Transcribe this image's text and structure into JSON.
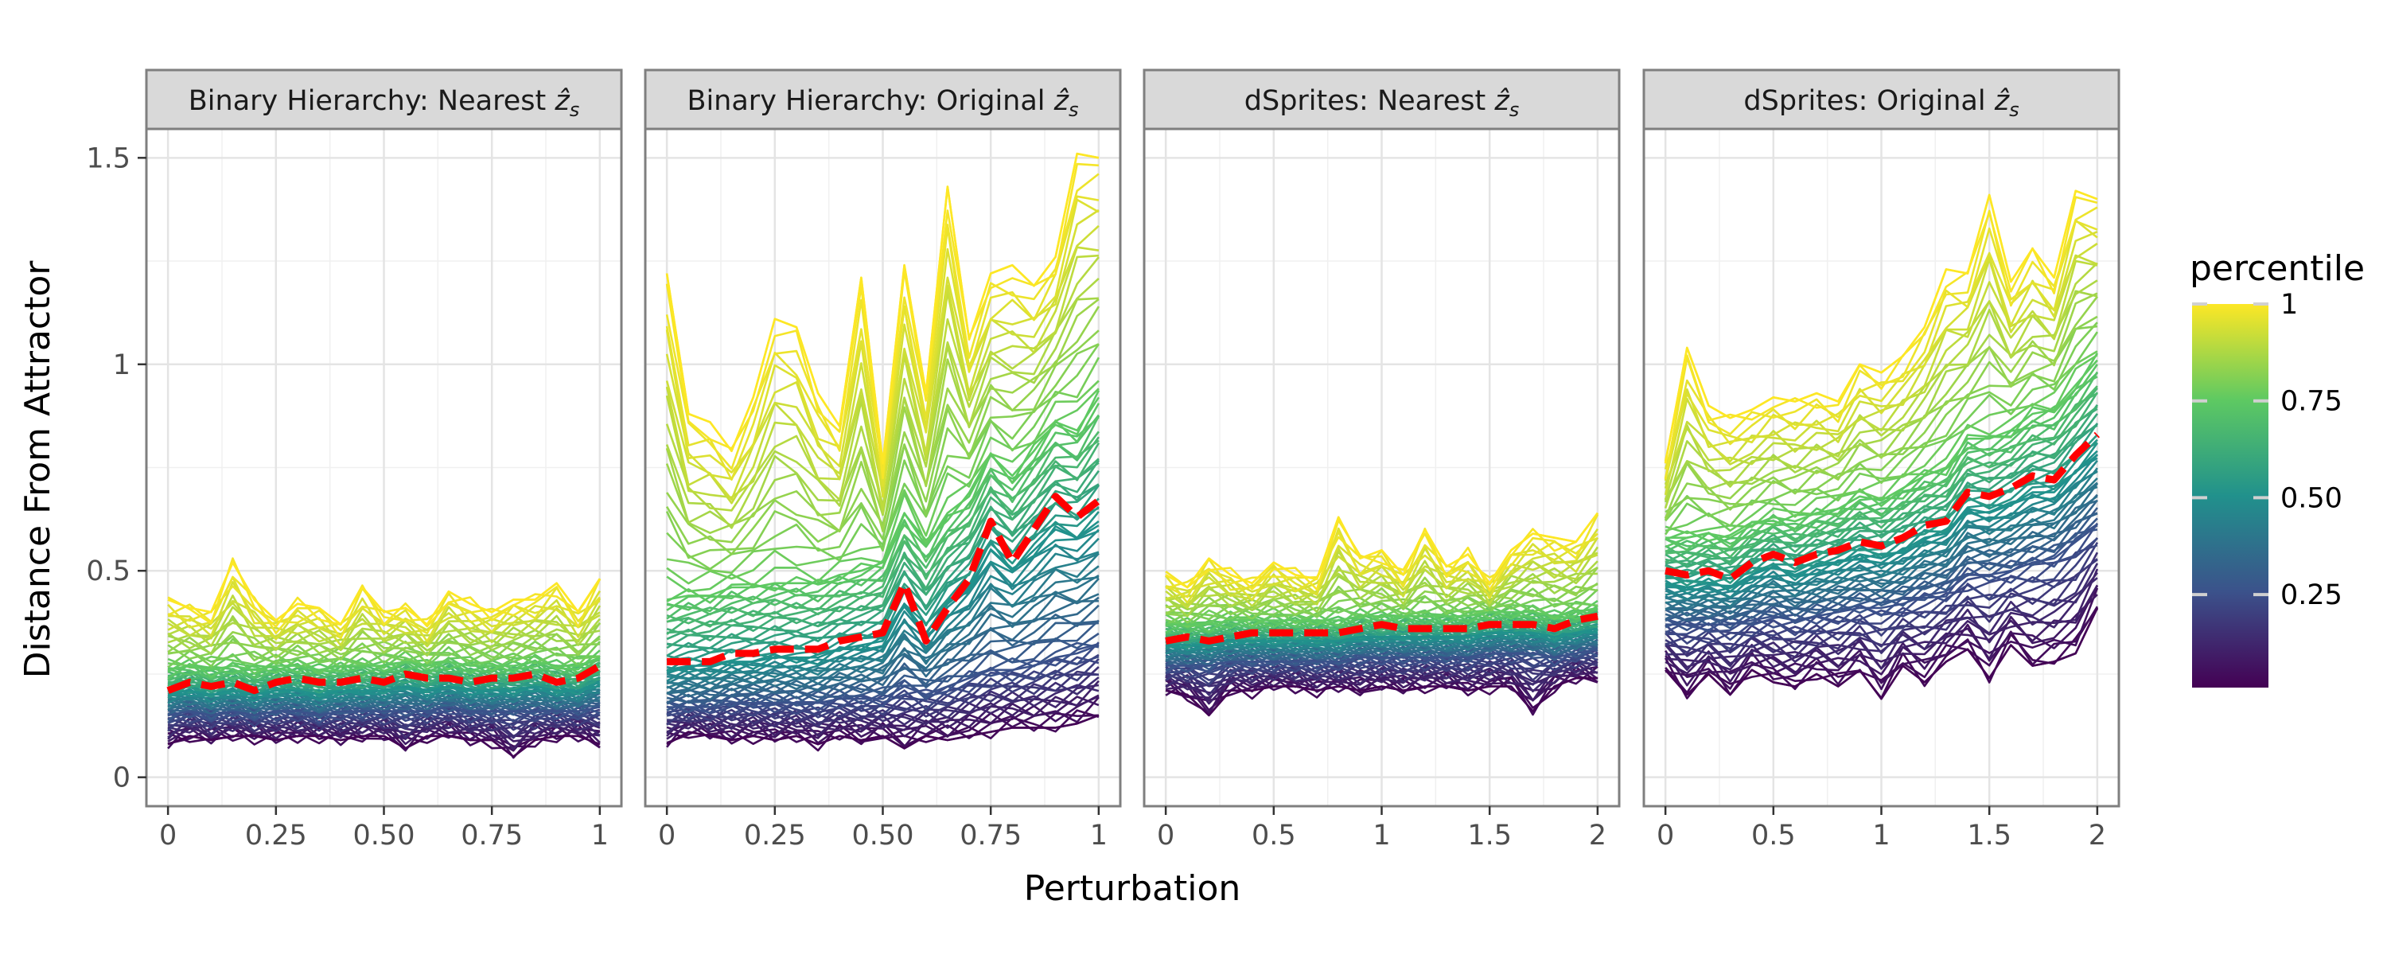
{
  "chart_data": {
    "type": "line",
    "ylabel": "Distance From Attractor",
    "xlabel": "Perturbation",
    "ylim": [
      -0.07,
      1.57
    ],
    "y_ticks": [
      {
        "value": 0,
        "label": "0"
      },
      {
        "value": 0.5,
        "label": "0.5"
      },
      {
        "value": 1,
        "label": "1"
      },
      {
        "value": 1.5,
        "label": "1.5"
      }
    ],
    "legend": {
      "title": "percentile",
      "placement": "right",
      "colors": [
        "#440154",
        "#3b528b",
        "#21918c",
        "#5ec962",
        "#fde725"
      ],
      "breaks": [
        {
          "value": 1,
          "label": "1"
        },
        {
          "value": 0.75,
          "label": "0.75"
        },
        {
          "value": 0.5,
          "label": "0.50"
        },
        {
          "value": 0.25,
          "label": "0.25"
        }
      ],
      "range": [
        0.01,
        1
      ]
    },
    "mean_line": {
      "color": "#ff0000",
      "style": "dashed"
    },
    "grid": true,
    "facets": [
      {
        "strip": "Binary Hierarchy: Nearest",
        "xlim": [
          -0.05,
          1.05
        ],
        "x_ticks": [
          {
            "value": 0,
            "label": "0"
          },
          {
            "value": 0.25,
            "label": "0.25"
          },
          {
            "value": 0.5,
            "label": "0.50"
          },
          {
            "value": 0.75,
            "label": "0.75"
          },
          {
            "value": 1,
            "label": "1"
          }
        ],
        "x": [
          0,
          0.05,
          0.1,
          0.15,
          0.2,
          0.25,
          0.3,
          0.35,
          0.4,
          0.45,
          0.5,
          0.55,
          0.6,
          0.65,
          0.7,
          0.75,
          0.8,
          0.85,
          0.9,
          0.95,
          1
        ],
        "mean": [
          0.21,
          0.23,
          0.22,
          0.23,
          0.21,
          0.23,
          0.24,
          0.23,
          0.23,
          0.24,
          0.23,
          0.25,
          0.24,
          0.24,
          0.23,
          0.24,
          0.24,
          0.25,
          0.23,
          0.24,
          0.27
        ],
        "bands": [
          {
            "p": 0.01,
            "values": [
              0.08,
              0.1,
              0.09,
              0.1,
              0.1,
              0.09,
              0.1,
              0.1,
              0.09,
              0.1,
              0.1,
              0.07,
              0.1,
              0.1,
              0.09,
              0.09,
              0.05,
              0.09,
              0.1,
              0.1,
              0.08
            ]
          },
          {
            "p": 0.25,
            "values": [
              0.15,
              0.16,
              0.15,
              0.16,
              0.15,
              0.16,
              0.16,
              0.15,
              0.16,
              0.16,
              0.16,
              0.16,
              0.16,
              0.17,
              0.16,
              0.16,
              0.16,
              0.16,
              0.16,
              0.16,
              0.17
            ]
          },
          {
            "p": 0.5,
            "values": [
              0.2,
              0.21,
              0.2,
              0.21,
              0.2,
              0.21,
              0.21,
              0.2,
              0.21,
              0.21,
              0.21,
              0.22,
              0.21,
              0.22,
              0.21,
              0.21,
              0.21,
              0.22,
              0.21,
              0.21,
              0.23
            ]
          },
          {
            "p": 0.75,
            "values": [
              0.26,
              0.27,
              0.26,
              0.27,
              0.26,
              0.27,
              0.27,
              0.26,
              0.27,
              0.27,
              0.27,
              0.28,
              0.27,
              0.28,
              0.27,
              0.27,
              0.27,
              0.28,
              0.27,
              0.27,
              0.29
            ]
          },
          {
            "p": 1,
            "values": [
              0.43,
              0.41,
              0.4,
              0.52,
              0.43,
              0.38,
              0.42,
              0.41,
              0.37,
              0.46,
              0.4,
              0.41,
              0.37,
              0.45,
              0.42,
              0.4,
              0.43,
              0.43,
              0.47,
              0.4,
              0.48
            ]
          }
        ]
      },
      {
        "strip": "Binary Hierarchy: Original",
        "xlim": [
          -0.05,
          1.05
        ],
        "x_ticks": [
          {
            "value": 0,
            "label": "0"
          },
          {
            "value": 0.25,
            "label": "0.25"
          },
          {
            "value": 0.5,
            "label": "0.50"
          },
          {
            "value": 0.75,
            "label": "0.75"
          },
          {
            "value": 1,
            "label": "1"
          }
        ],
        "x": [
          0,
          0.05,
          0.1,
          0.15,
          0.2,
          0.25,
          0.3,
          0.35,
          0.4,
          0.45,
          0.5,
          0.55,
          0.6,
          0.65,
          0.7,
          0.75,
          0.8,
          0.85,
          0.9,
          0.95,
          1
        ],
        "mean": [
          0.28,
          0.28,
          0.28,
          0.3,
          0.3,
          0.31,
          0.31,
          0.31,
          0.33,
          0.34,
          0.35,
          0.47,
          0.33,
          0.41,
          0.48,
          0.62,
          0.52,
          0.6,
          0.68,
          0.63,
          0.67
        ],
        "bands": [
          {
            "p": 0.01,
            "values": [
              0.08,
              0.11,
              0.1,
              0.09,
              0.1,
              0.09,
              0.1,
              0.08,
              0.1,
              0.09,
              0.1,
              0.07,
              0.1,
              0.09,
              0.1,
              0.11,
              0.12,
              0.12,
              0.12,
              0.13,
              0.15
            ]
          },
          {
            "p": 0.25,
            "values": [
              0.17,
              0.17,
              0.17,
              0.18,
              0.18,
              0.18,
              0.18,
              0.18,
              0.19,
              0.19,
              0.19,
              0.22,
              0.2,
              0.22,
              0.24,
              0.26,
              0.26,
              0.27,
              0.29,
              0.3,
              0.32
            ]
          },
          {
            "p": 0.5,
            "values": [
              0.26,
              0.27,
              0.27,
              0.28,
              0.28,
              0.29,
              0.29,
              0.29,
              0.31,
              0.32,
              0.33,
              0.42,
              0.35,
              0.42,
              0.46,
              0.55,
              0.5,
              0.55,
              0.6,
              0.58,
              0.62
            ]
          },
          {
            "p": 0.75,
            "values": [
              0.43,
              0.44,
              0.44,
              0.46,
              0.46,
              0.47,
              0.47,
              0.47,
              0.49,
              0.5,
              0.52,
              0.64,
              0.56,
              0.64,
              0.68,
              0.78,
              0.73,
              0.79,
              0.86,
              0.84,
              0.92
            ]
          },
          {
            "p": 1,
            "values": [
              1.22,
              0.88,
              0.86,
              0.79,
              0.92,
              1.11,
              1.09,
              0.93,
              0.85,
              1.21,
              0.76,
              1.24,
              0.93,
              1.43,
              1.06,
              1.22,
              1.24,
              1.19,
              1.26,
              1.51,
              1.5
            ]
          }
        ]
      },
      {
        "strip": "dSprites: Nearest",
        "xlim": [
          -0.1,
          2.1
        ],
        "x_ticks": [
          {
            "value": 0,
            "label": "0"
          },
          {
            "value": 0.5,
            "label": "0.5"
          },
          {
            "value": 1,
            "label": "1"
          },
          {
            "value": 1.5,
            "label": "1.5"
          },
          {
            "value": 2,
            "label": "2"
          }
        ],
        "x": [
          0,
          0.1,
          0.2,
          0.3,
          0.4,
          0.5,
          0.6,
          0.7,
          0.8,
          0.9,
          1,
          1.1,
          1.2,
          1.3,
          1.4,
          1.5,
          1.6,
          1.7,
          1.8,
          1.9,
          2
        ],
        "mean": [
          0.33,
          0.34,
          0.33,
          0.34,
          0.35,
          0.35,
          0.35,
          0.35,
          0.35,
          0.36,
          0.37,
          0.36,
          0.36,
          0.36,
          0.36,
          0.37,
          0.37,
          0.37,
          0.36,
          0.38,
          0.39
        ],
        "bands": [
          {
            "p": 0.01,
            "values": [
              0.21,
              0.2,
              0.15,
              0.21,
              0.21,
              0.22,
              0.22,
              0.21,
              0.22,
              0.21,
              0.22,
              0.21,
              0.22,
              0.22,
              0.21,
              0.22,
              0.22,
              0.16,
              0.22,
              0.24,
              0.24
            ]
          },
          {
            "p": 0.25,
            "values": [
              0.27,
              0.27,
              0.27,
              0.28,
              0.28,
              0.28,
              0.28,
              0.28,
              0.28,
              0.29,
              0.29,
              0.29,
              0.29,
              0.29,
              0.29,
              0.3,
              0.3,
              0.3,
              0.29,
              0.3,
              0.31
            ]
          },
          {
            "p": 0.5,
            "values": [
              0.32,
              0.32,
              0.32,
              0.33,
              0.33,
              0.33,
              0.33,
              0.33,
              0.33,
              0.34,
              0.34,
              0.34,
              0.34,
              0.34,
              0.34,
              0.35,
              0.35,
              0.35,
              0.34,
              0.35,
              0.36
            ]
          },
          {
            "p": 0.75,
            "values": [
              0.37,
              0.37,
              0.37,
              0.38,
              0.38,
              0.38,
              0.38,
              0.38,
              0.38,
              0.39,
              0.39,
              0.39,
              0.39,
              0.39,
              0.39,
              0.4,
              0.4,
              0.4,
              0.39,
              0.4,
              0.41
            ]
          },
          {
            "p": 1,
            "values": [
              0.49,
              0.46,
              0.53,
              0.49,
              0.47,
              0.52,
              0.49,
              0.48,
              0.63,
              0.53,
              0.55,
              0.49,
              0.6,
              0.51,
              0.54,
              0.47,
              0.55,
              0.59,
              0.58,
              0.57,
              0.64
            ]
          }
        ]
      },
      {
        "strip": "dSprites: Original",
        "xlim": [
          -0.1,
          2.1
        ],
        "x_ticks": [
          {
            "value": 0,
            "label": "0"
          },
          {
            "value": 0.5,
            "label": "0.5"
          },
          {
            "value": 1,
            "label": "1"
          },
          {
            "value": 1.5,
            "label": "1.5"
          },
          {
            "value": 2,
            "label": "2"
          }
        ],
        "x": [
          0,
          0.1,
          0.2,
          0.3,
          0.4,
          0.5,
          0.6,
          0.7,
          0.8,
          0.9,
          1,
          1.1,
          1.2,
          1.3,
          1.4,
          1.5,
          1.6,
          1.7,
          1.8,
          1.9,
          2
        ],
        "mean": [
          0.5,
          0.49,
          0.5,
          0.48,
          0.52,
          0.54,
          0.52,
          0.54,
          0.55,
          0.57,
          0.56,
          0.58,
          0.61,
          0.62,
          0.69,
          0.68,
          0.7,
          0.73,
          0.72,
          0.78,
          0.83
        ],
        "bands": [
          {
            "p": 0.01,
            "values": [
              0.26,
              0.2,
              0.25,
              0.2,
              0.26,
              0.23,
              0.22,
              0.25,
              0.22,
              0.26,
              0.19,
              0.27,
              0.23,
              0.28,
              0.31,
              0.24,
              0.32,
              0.27,
              0.28,
              0.3,
              0.41
            ]
          },
          {
            "p": 0.25,
            "values": [
              0.37,
              0.37,
              0.37,
              0.37,
              0.38,
              0.39,
              0.38,
              0.39,
              0.4,
              0.41,
              0.41,
              0.42,
              0.44,
              0.45,
              0.49,
              0.49,
              0.5,
              0.52,
              0.53,
              0.57,
              0.61
            ]
          },
          {
            "p": 0.5,
            "values": [
              0.47,
              0.46,
              0.47,
              0.46,
              0.49,
              0.51,
              0.49,
              0.51,
              0.52,
              0.54,
              0.53,
              0.55,
              0.58,
              0.59,
              0.65,
              0.64,
              0.66,
              0.69,
              0.69,
              0.74,
              0.79
            ]
          },
          {
            "p": 0.75,
            "values": [
              0.58,
              0.58,
              0.59,
              0.58,
              0.61,
              0.63,
              0.62,
              0.64,
              0.65,
              0.68,
              0.67,
              0.7,
              0.73,
              0.75,
              0.82,
              0.82,
              0.84,
              0.88,
              0.89,
              0.95,
              1.01
            ]
          },
          {
            "p": 1,
            "values": [
              0.76,
              1.04,
              0.9,
              0.87,
              0.89,
              0.92,
              0.91,
              0.93,
              0.91,
              1.0,
              0.98,
              1.02,
              1.09,
              1.23,
              1.22,
              1.41,
              1.2,
              1.28,
              1.21,
              1.42,
              1.4
            ]
          }
        ]
      }
    ]
  }
}
